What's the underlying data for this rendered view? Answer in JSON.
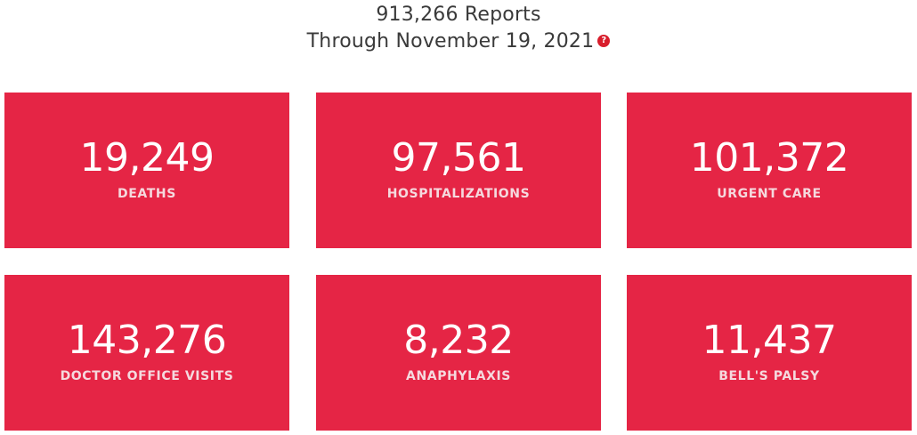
{
  "header": {
    "reports_line": "913,266 Reports",
    "date_line": "Through November 19, 2021",
    "help_icon_glyph": "?",
    "help_icon_name": "question-mark-icon"
  },
  "colors": {
    "card_background": "#e52545",
    "help_icon": "#d81e2c",
    "header_text": "#3a3a3a"
  },
  "cards": [
    {
      "value": "19,249",
      "label": "DEATHS"
    },
    {
      "value": "97,561",
      "label": "HOSPITALIZATIONS"
    },
    {
      "value": "101,372",
      "label": "URGENT CARE"
    },
    {
      "value": "143,276",
      "label": "DOCTOR OFFICE VISITS"
    },
    {
      "value": "8,232",
      "label": "ANAPHYLAXIS"
    },
    {
      "value": "11,437",
      "label": "BELL'S PALSY"
    }
  ]
}
